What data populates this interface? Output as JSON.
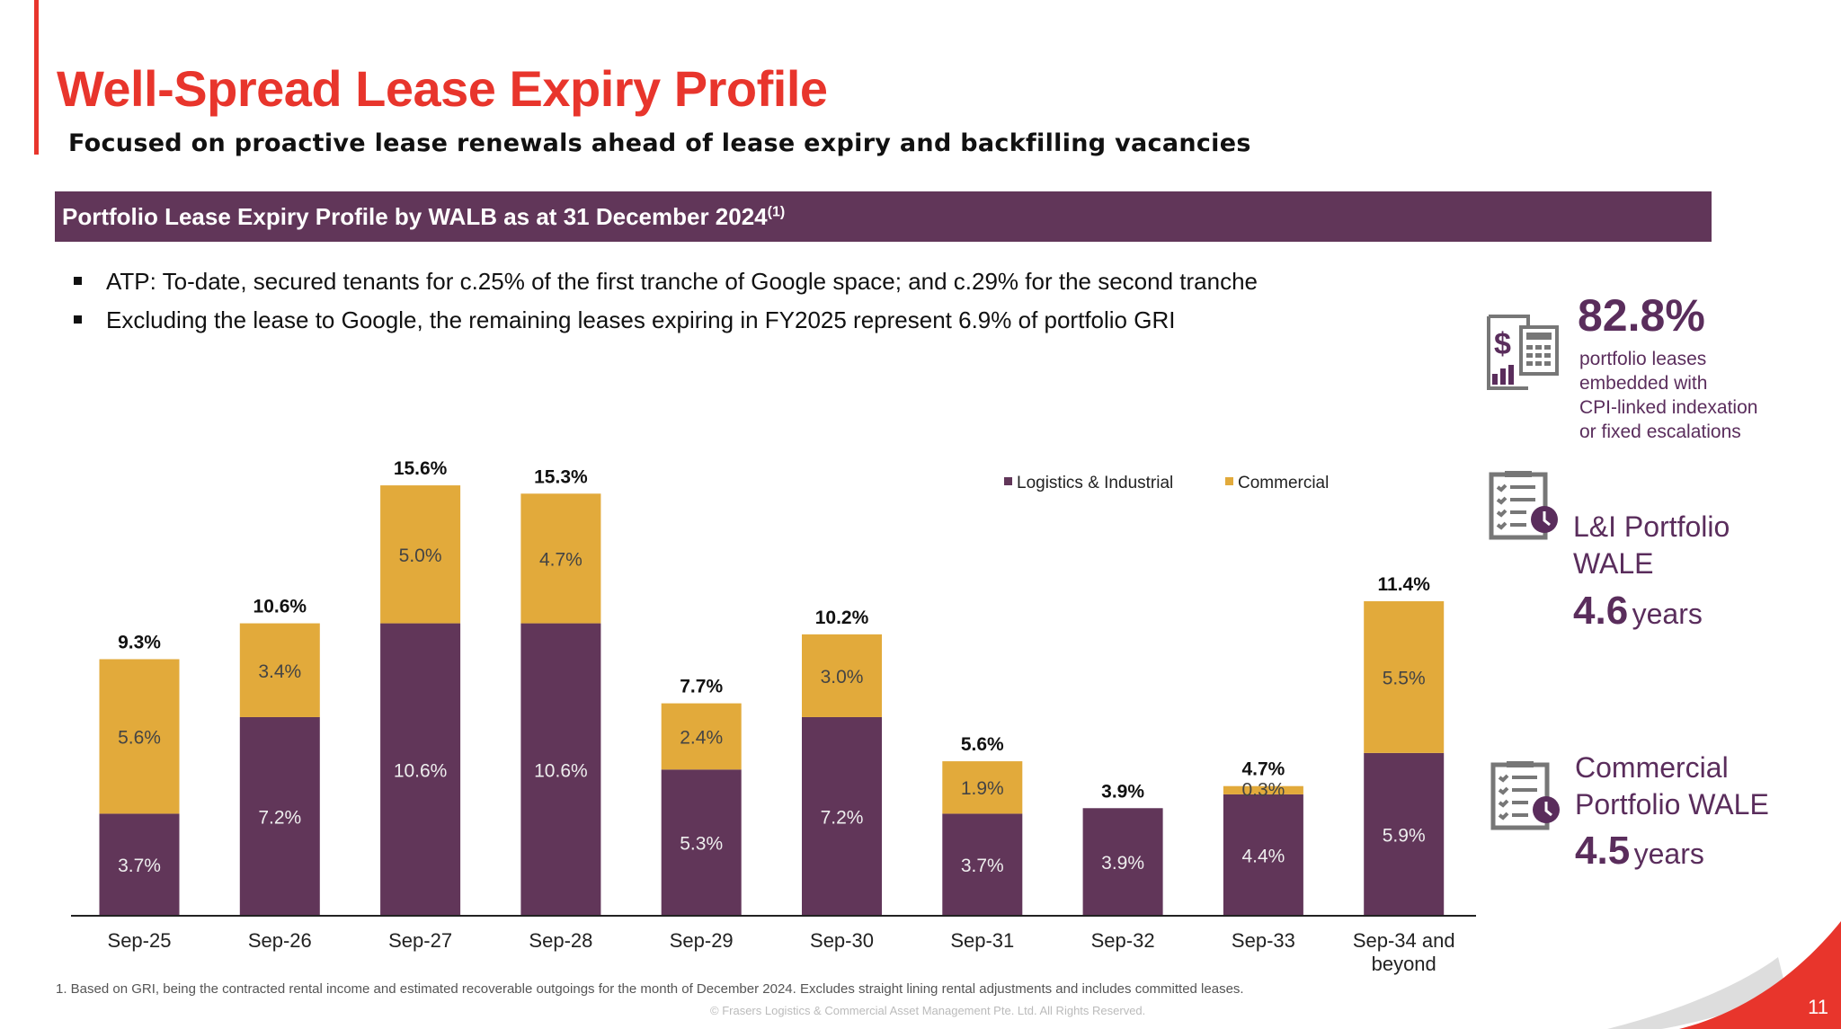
{
  "title": "Well-Spread Lease Expiry Profile",
  "subtitle": "Focused on proactive lease renewals ahead of lease expiry and backfilling vacancies",
  "band": {
    "text": "Portfolio Lease Expiry Profile by WALB as at 31 December 2024",
    "sup": "(1)"
  },
  "bullets": [
    "ATP: To-date, secured tenants for c.25% of the first tranche of Google space; and c.29% for the second tranche",
    "Excluding the lease to Google, the remaining leases expiring in FY2025 represent 6.9% of portfolio GRI"
  ],
  "colors": {
    "logistics": "#613659",
    "commercial": "#e2aa3b",
    "accent": "#e8352c"
  },
  "chart_data": {
    "type": "bar",
    "stacked": true,
    "categories": [
      "Sep-25",
      "Sep-26",
      "Sep-27",
      "Sep-28",
      "Sep-29",
      "Sep-30",
      "Sep-31",
      "Sep-32",
      "Sep-33",
      "Sep-34 and beyond"
    ],
    "series": [
      {
        "name": "Logistics & Industrial",
        "values": [
          3.7,
          7.2,
          10.6,
          10.6,
          5.3,
          7.2,
          3.7,
          3.9,
          4.4,
          5.9
        ],
        "labels": [
          "3.7%",
          "7.2%",
          "10.6%",
          "10.6%",
          "5.3%",
          "7.2%",
          "3.7%",
          "3.9%",
          "4.4%",
          "5.9%"
        ]
      },
      {
        "name": "Commercial",
        "values": [
          5.6,
          3.4,
          5.0,
          4.7,
          2.4,
          3.0,
          1.9,
          0,
          0.3,
          5.5
        ],
        "labels": [
          "5.6%",
          "3.4%",
          "5.0%",
          "4.7%",
          "2.4%",
          "3.0%",
          "1.9%",
          "",
          "0.3%",
          "5.5%"
        ]
      }
    ],
    "totals": [
      "9.3%",
      "10.6%",
      "15.6%",
      "15.3%",
      "7.7%",
      "10.2%",
      "5.6%",
      "3.9%",
      "4.7%",
      "11.4%"
    ],
    "legend": "top-right",
    "grid": false
  },
  "side": {
    "cpi": {
      "value": "82.8%",
      "lines": [
        "portfolio leases",
        "embedded with",
        "CPI-linked indexation",
        "or fixed escalations"
      ]
    },
    "li": {
      "lines": [
        "L&I Portfolio",
        "WALE"
      ],
      "value": "4.6",
      "unit": "years"
    },
    "com": {
      "lines": [
        "Commercial",
        "Portfolio WALE"
      ],
      "value": "4.5",
      "unit": "years"
    }
  },
  "footnote": "1. Based on GRI, being the contracted rental income and estimated recoverable outgoings for the month of December 2024. Excludes straight lining rental adjustments and includes committed leases.",
  "copyright": "©  Frasers Logistics & Commercial Asset Management Pte. Ltd. All Rights Reserved.",
  "page": "11"
}
